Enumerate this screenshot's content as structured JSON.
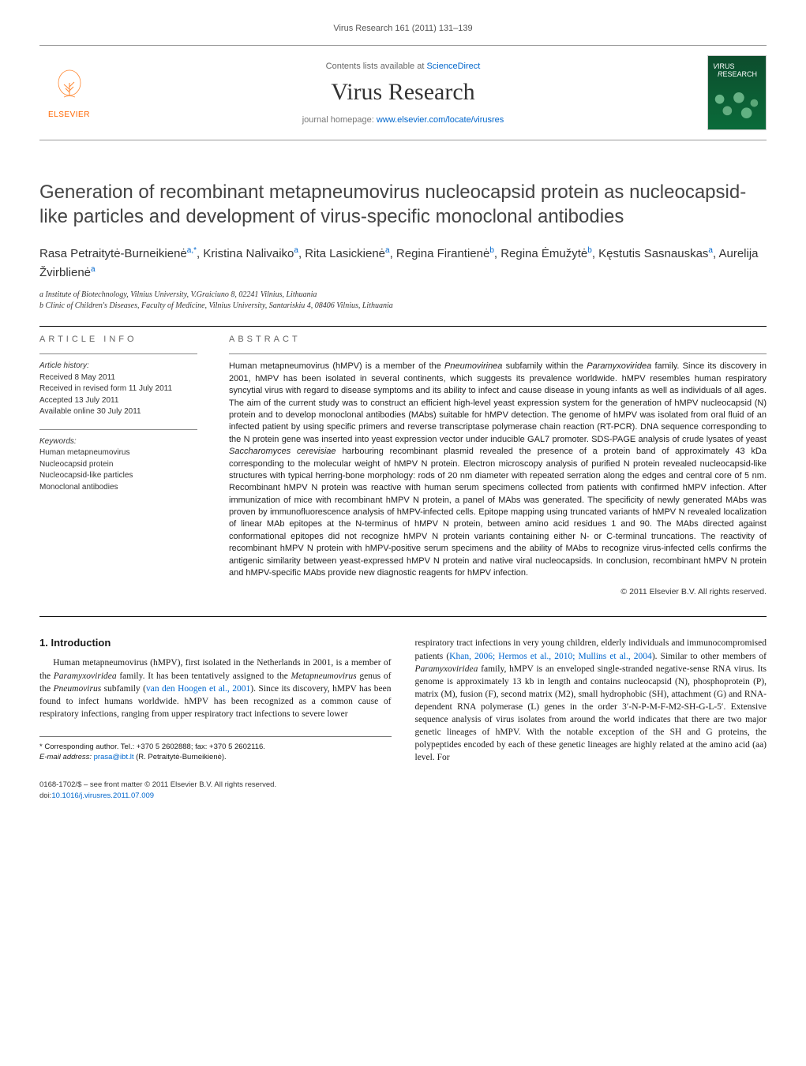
{
  "header": {
    "citation": "Virus Research 161 (2011) 131–139"
  },
  "masthead": {
    "publisher": "ELSEVIER",
    "contents_prefix": "Contents lists available at ",
    "contents_link": "ScienceDirect",
    "journal": "Virus Research",
    "homepage_prefix": "journal homepage: ",
    "homepage_link": "www.elsevier.com/locate/virusres",
    "cover_title": "VIRUS RESEARCH",
    "logo_color": "#ff6600",
    "cover_bg_top": "#0d4d2d",
    "cover_bg_bottom": "#0a6b3a"
  },
  "article": {
    "title": "Generation of recombinant metapneumovirus nucleocapsid protein as nucleocapsid-like particles and development of virus-specific monoclonal antibodies",
    "authors_html": "Rasa Petraitytė-Burneikienė<sup>a,*</sup>, Kristina Nalivaiko<sup>a</sup>, Rita Lasickienė<sup>a</sup>, Regina Firantienė<sup>b</sup>, Regina Ėmužytė<sup>b</sup>, Kęstutis Sasnauskas<sup>a</sup>, Aurelija Žvirblienė<sup>a</sup>",
    "affiliations": [
      "a Institute of Biotechnology, Vilnius University, V.Graiciuno 8, 02241 Vilnius, Lithuania",
      "b Clinic of Children's Diseases, Faculty of Medicine, Vilnius University, Santariskiu 4, 08406 Vilnius, Lithuania"
    ]
  },
  "info": {
    "label": "article info",
    "history_heading": "Article history:",
    "history": [
      "Received 8 May 2011",
      "Received in revised form 11 July 2011",
      "Accepted 13 July 2011",
      "Available online 30 July 2011"
    ],
    "keywords_heading": "Keywords:",
    "keywords": [
      "Human metapneumovirus",
      "Nucleocapsid protein",
      "Nucleocapsid-like particles",
      "Monoclonal antibodies"
    ]
  },
  "abstract": {
    "label": "abstract",
    "text": "Human metapneumovirus (hMPV) is a member of the Pneumovirinea subfamily within the Paramyxoviridea family. Since its discovery in 2001, hMPV has been isolated in several continents, which suggests its prevalence worldwide. hMPV resembles human respiratory syncytial virus with regard to disease symptoms and its ability to infect and cause disease in young infants as well as individuals of all ages. The aim of the current study was to construct an efficient high-level yeast expression system for the generation of hMPV nucleocapsid (N) protein and to develop monoclonal antibodies (MAbs) suitable for hMPV detection. The genome of hMPV was isolated from oral fluid of an infected patient by using specific primers and reverse transcriptase polymerase chain reaction (RT-PCR). DNA sequence corresponding to the N protein gene was inserted into yeast expression vector under inducible GAL7 promoter. SDS-PAGE analysis of crude lysates of yeast Saccharomyces cerevisiae harbouring recombinant plasmid revealed the presence of a protein band of approximately 43 kDa corresponding to the molecular weight of hMPV N protein. Electron microscopy analysis of purified N protein revealed nucleocapsid-like structures with typical herring-bone morphology: rods of 20 nm diameter with repeated serration along the edges and central core of 5 nm. Recombinant hMPV N protein was reactive with human serum specimens collected from patients with confirmed hMPV infection. After immunization of mice with recombinant hMPV N protein, a panel of MAbs was generated. The specificity of newly generated MAbs was proven by immunofluorescence analysis of hMPV-infected cells. Epitope mapping using truncated variants of hMPV N revealed localization of linear MAb epitopes at the N-terminus of hMPV N protein, between amino acid residues 1 and 90. The MAbs directed against conformational epitopes did not recognize hMPV N protein variants containing either N- or C-terminal truncations. The reactivity of recombinant hMPV N protein with hMPV-positive serum specimens and the ability of MAbs to recognize virus-infected cells confirms the antigenic similarity between yeast-expressed hMPV N protein and native viral nucleocapsids. In conclusion, recombinant hMPV N protein and hMPV-specific MAbs provide new diagnostic reagents for hMPV infection.",
    "copyright": "© 2011 Elsevier B.V. All rights reserved."
  },
  "body": {
    "section_number": "1.",
    "section_title": "Introduction",
    "para1": "Human metapneumovirus (hMPV), first isolated in the Netherlands in 2001, is a member of the Paramyxoviridea family. It has been tentatively assigned to the Metapneumovirus genus of the Pneumovirus subfamily (van den Hoogen et al., 2001). Since its discovery, hMPV has been found to infect humans worldwide. hMPV has been recognized as a common cause of respiratory infections, ranging from upper respiratory tract infections to severe lower",
    "link1": "van den Hoogen et al., 2001",
    "para2": "respiratory tract infections in very young children, elderly individuals and immunocompromised patients (Khan, 2006; Hermos et al., 2010; Mullins et al., 2004). Similar to other members of Paramyxoviridea family, hMPV is an enveloped single-stranded negative-sense RNA virus. Its genome is approximately 13 kb in length and contains nucleocapsid (N), phosphoprotein (P), matrix (M), fusion (F), second matrix (M2), small hydrophobic (SH), attachment (G) and RNA-dependent RNA polymerase (L) genes in the order 3′-N-P-M-F-M2-SH-G-L-5′. Extensive sequence analysis of virus isolates from around the world indicates that there are two major genetic lineages of hMPV. With the notable exception of the SH and G proteins, the polypeptides encoded by each of these genetic lineages are highly related at the amino acid (aa) level. For",
    "link2": "Khan, 2006; Hermos et al., 2010; Mullins et al., 2004"
  },
  "footnote": {
    "corr": "* Corresponding author. Tel.: +370 5 2602888; fax: +370 5 2602116.",
    "email_label": "E-mail address: ",
    "email": "prasa@ibt.lt",
    "email_who": " (R. Petraitytė-Burneikienė)."
  },
  "footer": {
    "issn": "0168-1702/$ – see front matter © 2011 Elsevier B.V. All rights reserved.",
    "doi_prefix": "doi:",
    "doi": "10.1016/j.virusres.2011.07.009"
  },
  "colors": {
    "link": "#0066cc",
    "text": "#1a1a1a",
    "muted": "#666666"
  }
}
